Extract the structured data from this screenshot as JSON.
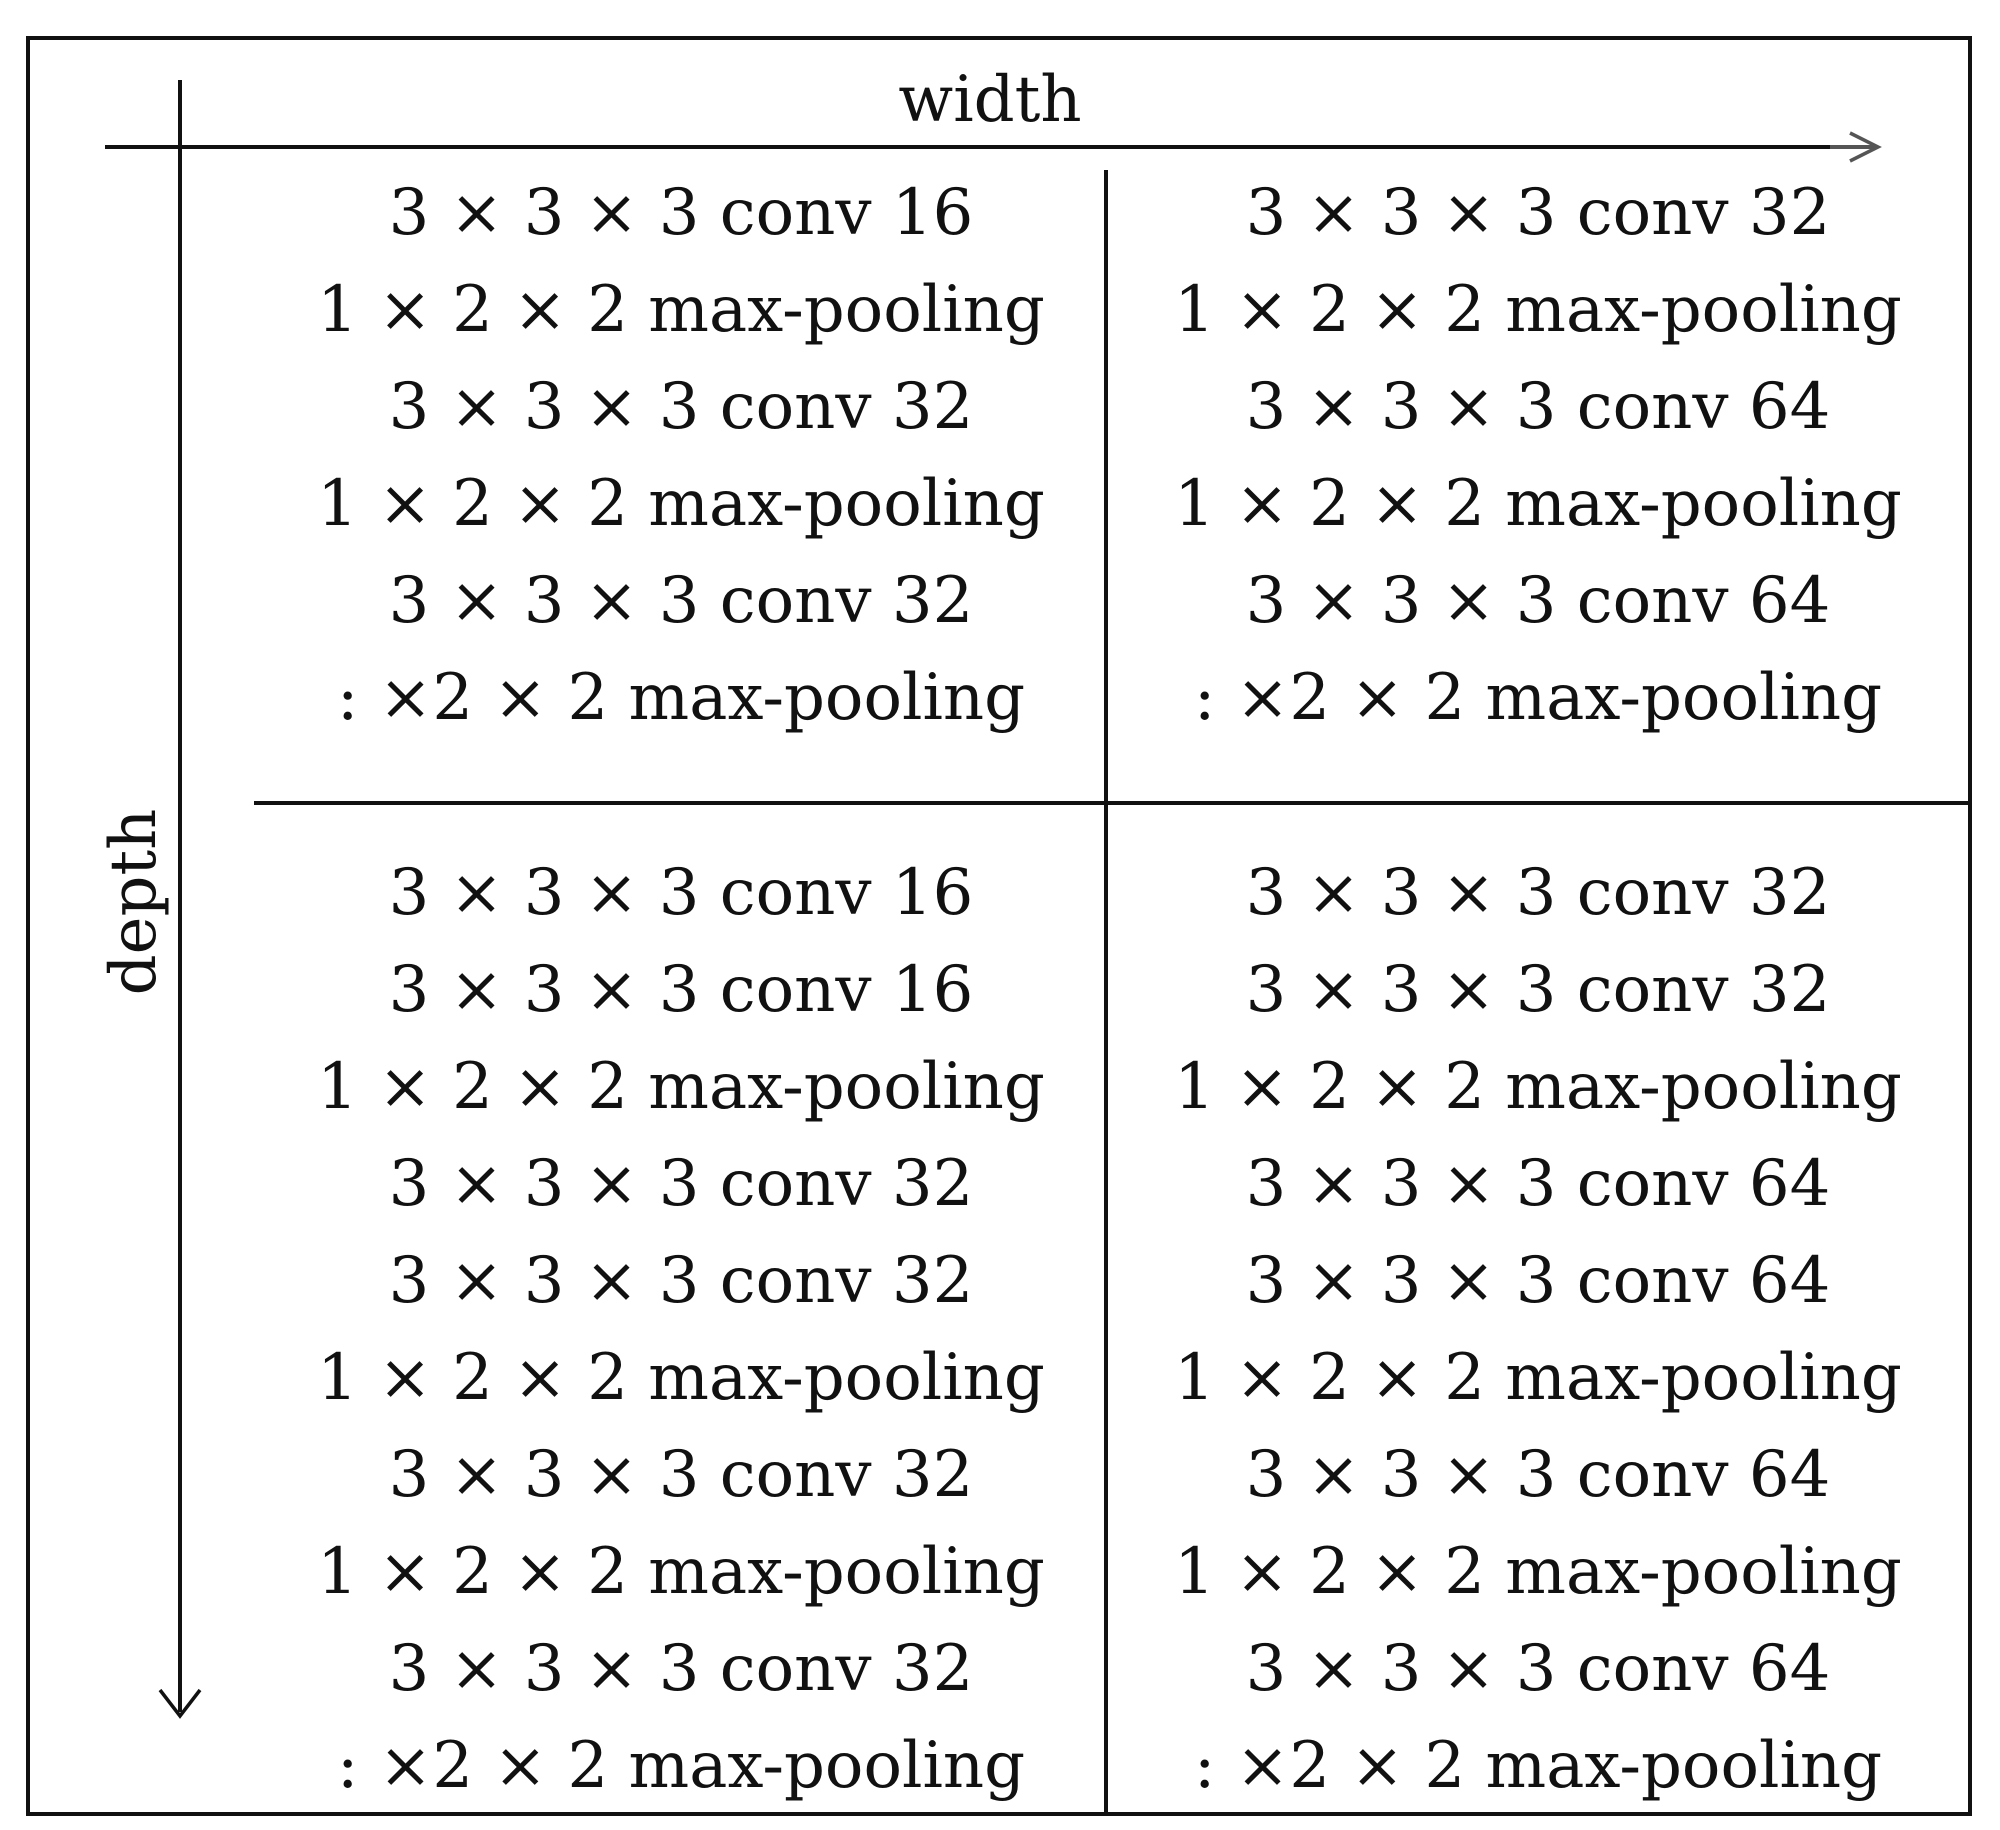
{
  "axes": {
    "width_label": "width",
    "depth_label": "depth"
  },
  "cells": {
    "top_left": [
      "3 × 3 × 3 conv 16",
      "1 × 2 × 2 max-pooling",
      "3 × 3 × 3 conv 32",
      "1 × 2 × 2 max-pooling",
      "3 × 3 × 3 conv 32",
      ": ×2 × 2 max-pooling"
    ],
    "top_right": [
      "3 × 3 × 3 conv 32",
      "1 × 2 × 2 max-pooling",
      "3 × 3 × 3 conv 64",
      "1 × 2 × 2 max-pooling",
      "3 × 3 × 3 conv 64",
      ": ×2 × 2 max-pooling"
    ],
    "bottom_left": [
      "3 × 3 × 3 conv 16",
      "3 × 3 × 3 conv 16",
      "1 × 2 × 2 max-pooling",
      "3 × 3 × 3 conv 32",
      "3 × 3 × 3 conv 32",
      "1 × 2 × 2 max-pooling",
      "3 × 3 × 3 conv 32",
      "1 × 2 × 2 max-pooling",
      "3 × 3 × 3 conv 32",
      ": ×2 × 2 max-pooling"
    ],
    "bottom_right": [
      "3 × 3 × 3 conv 32",
      "3 × 3 × 3 conv 32",
      "1 × 2 × 2 max-pooling",
      "3 × 3 × 3 conv 64",
      "3 × 3 × 3 conv 64",
      "1 × 2 × 2 max-pooling",
      "3 × 3 × 3 conv 64",
      "1 × 2 × 2 max-pooling",
      "3 × 3 × 3 conv 64",
      ": ×2 × 2 max-pooling"
    ]
  },
  "colors": {
    "line": "#111111",
    "arrow_tail": "#555555",
    "background": "#ffffff"
  }
}
